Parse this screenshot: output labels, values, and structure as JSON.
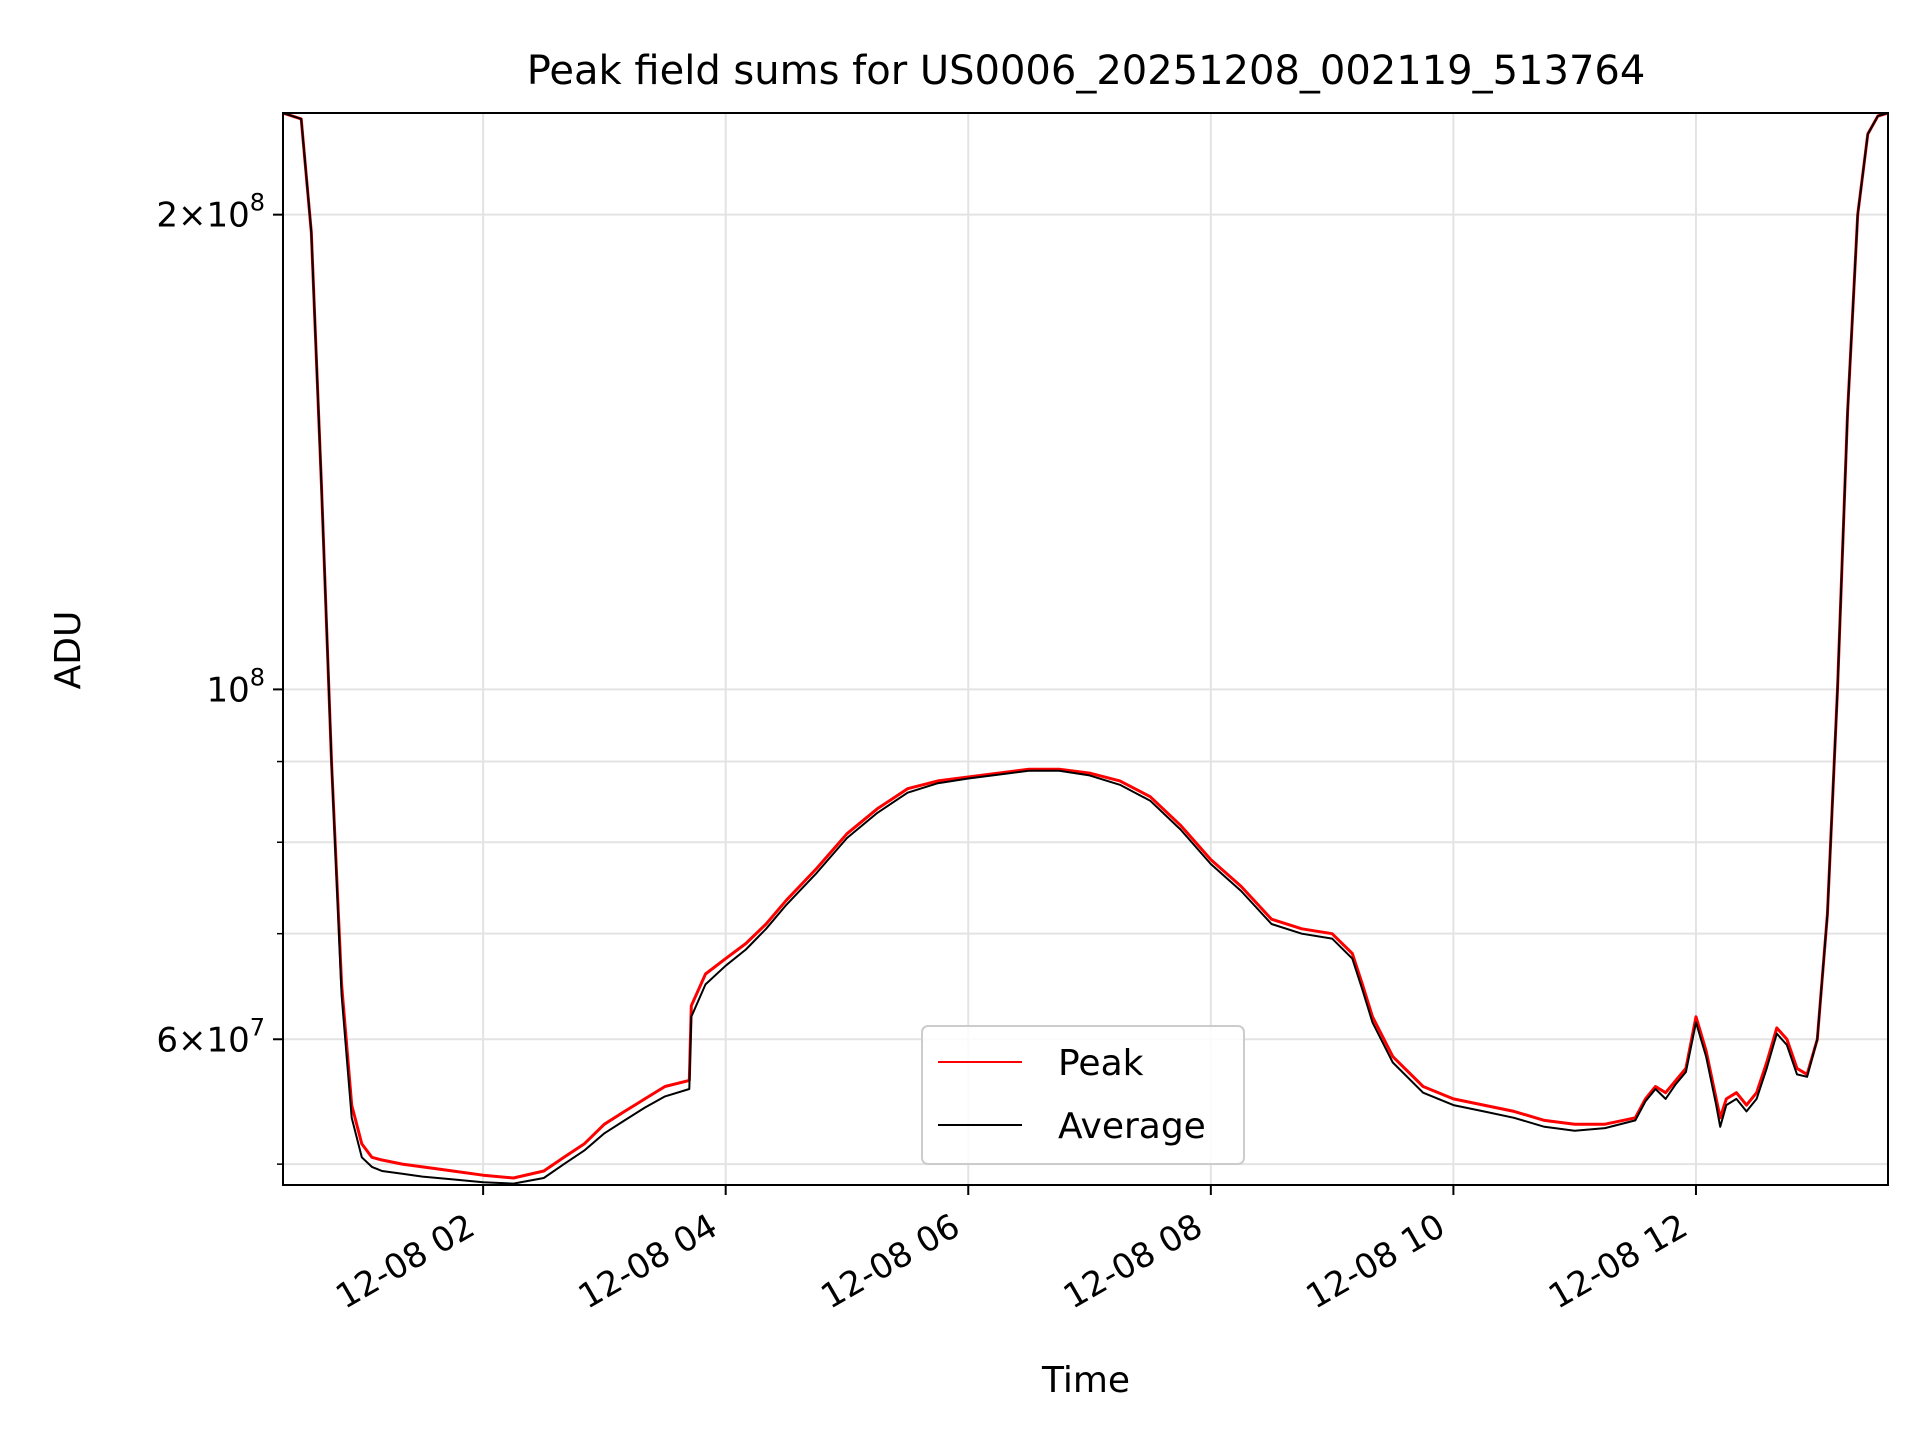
{
  "chart_data": {
    "type": "line",
    "title": "Peak field sums for US0006_20251208_002119_513764",
    "xlabel": "Time",
    "ylabel": "ADU",
    "y_scale": "log",
    "grid": true,
    "legend_position": "lower center",
    "xlim": [
      "2025-12-08 00:21",
      "2025-12-08 13:35"
    ],
    "ylim": [
      48500000,
      232000000
    ],
    "x_ticks": [
      "2025-12-08 02:00",
      "2025-12-08 04:00",
      "2025-12-08 06:00",
      "2025-12-08 08:00",
      "2025-12-08 10:00",
      "2025-12-08 12:00"
    ],
    "x_tick_labels": [
      "12-08 02",
      "12-08 04",
      "12-08 06",
      "12-08 08",
      "12-08 10",
      "12-08 12"
    ],
    "y_ticks": [
      {
        "value": 200000000,
        "mantissa": "2",
        "exponent": "8"
      },
      {
        "value": 100000000,
        "mantissa": "",
        "exponent": "8"
      },
      {
        "value": 60000000,
        "mantissa": "6",
        "exponent": "7"
      }
    ],
    "y_minor_ticks": [
      50000000,
      70000000,
      80000000,
      90000000
    ],
    "series": [
      {
        "name": "Peak",
        "color": "#ff0000",
        "x": [
          "00:21",
          "00:30",
          "00:35",
          "00:40",
          "00:45",
          "00:50",
          "00:55",
          "01:00",
          "01:05",
          "01:10",
          "01:20",
          "01:30",
          "01:45",
          "02:00",
          "02:15",
          "02:30",
          "02:40",
          "02:50",
          "03:00",
          "03:10",
          "03:20",
          "03:30",
          "03:42",
          "03:43",
          "03:50",
          "04:00",
          "04:10",
          "04:20",
          "04:30",
          "04:45",
          "05:00",
          "05:15",
          "05:30",
          "05:45",
          "06:00",
          "06:15",
          "06:30",
          "06:45",
          "07:00",
          "07:15",
          "07:30",
          "07:45",
          "08:00",
          "08:15",
          "08:30",
          "08:45",
          "09:00",
          "09:10",
          "09:15",
          "09:20",
          "09:30",
          "09:45",
          "10:00",
          "10:15",
          "10:30",
          "10:45",
          "11:00",
          "11:15",
          "11:30",
          "11:35",
          "11:40",
          "11:45",
          "11:50",
          "11:55",
          "12:00",
          "12:05",
          "12:10",
          "12:12",
          "12:15",
          "12:20",
          "12:25",
          "12:30",
          "12:35",
          "12:40",
          "12:45",
          "12:50",
          "12:55",
          "13:00",
          "13:05",
          "13:10",
          "13:15",
          "13:20",
          "13:25",
          "13:30",
          "13:35"
        ],
        "y": [
          232000000,
          230000000,
          195000000,
          135000000,
          90000000,
          65000000,
          54500000,
          51500000,
          50500000,
          50300000,
          50000000,
          49800000,
          49500000,
          49200000,
          49000000,
          49500000,
          50500000,
          51500000,
          53000000,
          54000000,
          55000000,
          56000000,
          56500000,
          63000000,
          66000000,
          67500000,
          69000000,
          71000000,
          73500000,
          77000000,
          81000000,
          84000000,
          86500000,
          87500000,
          88000000,
          88500000,
          89000000,
          89000000,
          88500000,
          87500000,
          85500000,
          82000000,
          78000000,
          75000000,
          71500000,
          70500000,
          70000000,
          68000000,
          65000000,
          62000000,
          58500000,
          56000000,
          55000000,
          54500000,
          54000000,
          53300000,
          53000000,
          53000000,
          53500000,
          55000000,
          56000000,
          55500000,
          56500000,
          57500000,
          62000000,
          59000000,
          55000000,
          53500000,
          55000000,
          55500000,
          54500000,
          55500000,
          58000000,
          61000000,
          60000000,
          57500000,
          57000000,
          60000000,
          72000000,
          100000000,
          150000000,
          200000000,
          225000000,
          231000000,
          232000000
        ]
      },
      {
        "name": "Average",
        "color": "#000000",
        "x": [
          "00:21",
          "00:30",
          "00:35",
          "00:40",
          "00:45",
          "00:50",
          "00:55",
          "01:00",
          "01:05",
          "01:10",
          "01:20",
          "01:30",
          "01:45",
          "02:00",
          "02:15",
          "02:30",
          "02:40",
          "02:50",
          "03:00",
          "03:10",
          "03:20",
          "03:30",
          "03:42",
          "03:43",
          "03:50",
          "04:00",
          "04:10",
          "04:20",
          "04:30",
          "04:45",
          "05:00",
          "05:15",
          "05:30",
          "05:45",
          "06:00",
          "06:15",
          "06:30",
          "06:45",
          "07:00",
          "07:15",
          "07:30",
          "07:45",
          "08:00",
          "08:15",
          "08:30",
          "08:45",
          "09:00",
          "09:10",
          "09:15",
          "09:20",
          "09:30",
          "09:45",
          "10:00",
          "10:15",
          "10:30",
          "10:45",
          "11:00",
          "11:15",
          "11:30",
          "11:35",
          "11:40",
          "11:45",
          "11:50",
          "11:55",
          "12:00",
          "12:05",
          "12:10",
          "12:12",
          "12:15",
          "12:20",
          "12:25",
          "12:30",
          "12:35",
          "12:40",
          "12:45",
          "12:50",
          "12:55",
          "13:00",
          "13:05",
          "13:10",
          "13:15",
          "13:20",
          "13:25",
          "13:30",
          "13:35"
        ],
        "y": [
          232000000,
          230000000,
          195000000,
          135000000,
          90000000,
          64000000,
          53500000,
          50500000,
          49800000,
          49500000,
          49300000,
          49100000,
          48900000,
          48700000,
          48600000,
          49000000,
          50000000,
          51000000,
          52300000,
          53300000,
          54300000,
          55200000,
          55800000,
          62000000,
          65000000,
          66800000,
          68400000,
          70500000,
          73000000,
          76500000,
          80500000,
          83500000,
          86000000,
          87200000,
          87800000,
          88300000,
          88800000,
          88800000,
          88200000,
          87000000,
          85000000,
          81500000,
          77500000,
          74500000,
          71000000,
          70000000,
          69500000,
          67500000,
          64500000,
          61500000,
          58000000,
          55500000,
          54500000,
          54000000,
          53500000,
          52800000,
          52500000,
          52700000,
          53300000,
          54800000,
          55800000,
          55000000,
          56200000,
          57200000,
          61500000,
          58500000,
          54500000,
          52800000,
          54500000,
          55000000,
          54000000,
          55000000,
          57500000,
          60500000,
          59500000,
          57000000,
          56800000,
          60000000,
          72000000,
          100000000,
          150000000,
          200000000,
          225000000,
          231000000,
          232000000
        ]
      }
    ]
  }
}
